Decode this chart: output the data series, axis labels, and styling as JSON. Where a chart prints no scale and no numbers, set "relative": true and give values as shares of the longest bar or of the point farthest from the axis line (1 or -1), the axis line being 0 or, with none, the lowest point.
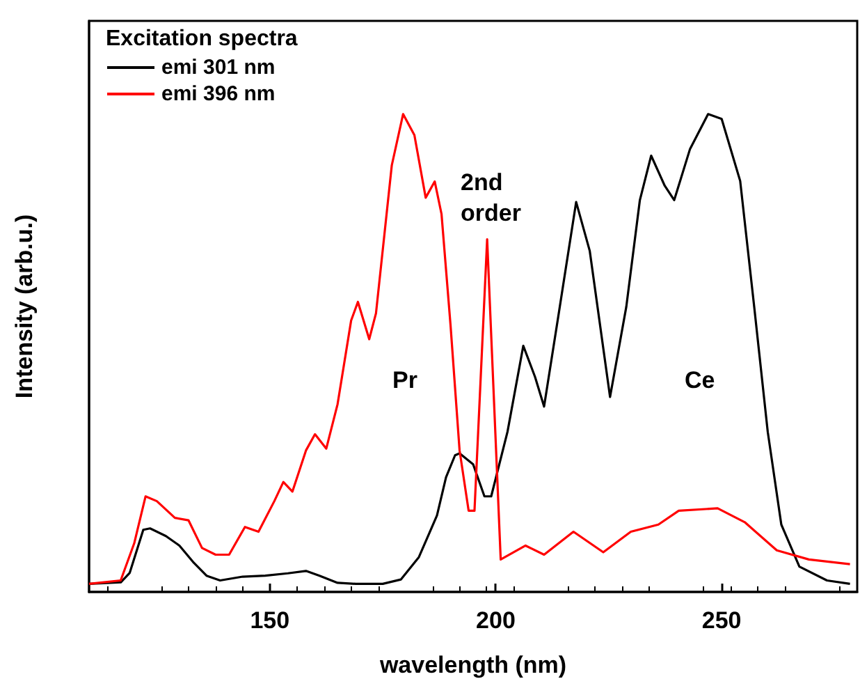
{
  "chart_data": {
    "type": "line",
    "relative": true,
    "xlabel": "wavelength (nm)",
    "ylabel": "Intensity (arb.u.)",
    "legend_title": "Excitation spectra",
    "legend": "top left",
    "tick_labels": "x",
    "grid": false,
    "marker": "none",
    "line_style": "solid",
    "xlim": [
      110,
      280
    ],
    "xticks": [
      150,
      200,
      250
    ],
    "annotations": [
      "Pr",
      "2nd\norder",
      "Ce"
    ],
    "series": [
      {
        "name": "emi 301 nm",
        "color": "#000000",
        "x": [
          110,
          117,
          119,
          122,
          123.5,
          127,
          130,
          133,
          136,
          139,
          144,
          149,
          154,
          158,
          161,
          165,
          169,
          175,
          179,
          183,
          187,
          189,
          191,
          192,
          195,
          197.5,
          199,
          202.6,
          206.1,
          208.7,
          210.7,
          213.7,
          217.8,
          220.8,
          225.3,
          228.9,
          231.9,
          234.4,
          237.4,
          239.5,
          243,
          247,
          250,
          254.1,
          257.2,
          260.2,
          263.2,
          267.2,
          273.3,
          278.4
        ],
        "values": [
          0.017,
          0.02,
          0.04,
          0.13,
          0.133,
          0.117,
          0.097,
          0.063,
          0.034,
          0.024,
          0.032,
          0.034,
          0.039,
          0.044,
          0.034,
          0.019,
          0.017,
          0.017,
          0.026,
          0.073,
          0.16,
          0.24,
          0.286,
          0.29,
          0.267,
          0.2,
          0.2,
          0.335,
          0.515,
          0.45,
          0.388,
          0.568,
          0.816,
          0.714,
          0.408,
          0.597,
          0.82,
          0.913,
          0.85,
          0.82,
          0.927,
          1.0,
          0.99,
          0.86,
          0.597,
          0.335,
          0.141,
          0.053,
          0.024,
          0.017
        ]
      },
      {
        "name": "emi 396 nm",
        "color": "#ff0000",
        "x": [
          110,
          117,
          120,
          122.5,
          125,
          129,
          132,
          135,
          138,
          141,
          144.5,
          147.5,
          151,
          153,
          155,
          158,
          160,
          162.5,
          165,
          168,
          169.5,
          172,
          173.5,
          177,
          179.5,
          182,
          184.5,
          186.5,
          188,
          190,
          192,
          194,
          195.3,
          198.1,
          201.1,
          206.6,
          210.7,
          217.2,
          223.8,
          229.9,
          236,
          240.5,
          249.1,
          255.1,
          262.2,
          269.3,
          278.4
        ],
        "values": [
          0.017,
          0.024,
          0.102,
          0.2,
          0.19,
          0.155,
          0.15,
          0.092,
          0.078,
          0.078,
          0.136,
          0.126,
          0.19,
          0.23,
          0.21,
          0.296,
          0.33,
          0.3,
          0.393,
          0.568,
          0.607,
          0.529,
          0.583,
          0.893,
          1.0,
          0.956,
          0.825,
          0.859,
          0.791,
          0.558,
          0.296,
          0.17,
          0.17,
          0.738,
          0.068,
          0.097,
          0.078,
          0.126,
          0.083,
          0.126,
          0.141,
          0.17,
          0.175,
          0.146,
          0.087,
          0.068,
          0.058
        ]
      }
    ]
  }
}
